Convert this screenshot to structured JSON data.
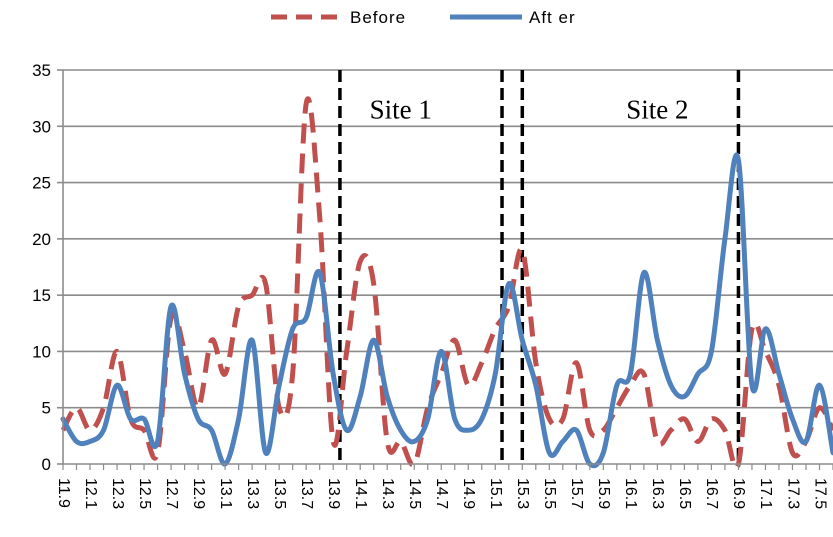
{
  "chart_data": {
    "type": "line",
    "title": "",
    "xlabel": "",
    "ylabel": "",
    "ylim": [
      0,
      35
    ],
    "yticks": [
      0,
      5,
      10,
      15,
      20,
      25,
      30,
      35
    ],
    "grid": "horizontal",
    "legend": "top",
    "x": [
      11.9,
      12.0,
      12.1,
      12.2,
      12.3,
      12.4,
      12.5,
      12.6,
      12.7,
      12.8,
      12.9,
      13.0,
      13.1,
      13.2,
      13.3,
      13.4,
      13.5,
      13.6,
      13.7,
      13.8,
      13.9,
      14.0,
      14.1,
      14.2,
      14.3,
      14.4,
      14.5,
      14.6,
      14.7,
      14.8,
      14.9,
      15.0,
      15.1,
      15.2,
      15.3,
      15.4,
      15.5,
      15.6,
      15.7,
      15.8,
      15.9,
      16.0,
      16.1,
      16.2,
      16.3,
      16.4,
      16.5,
      16.6,
      16.7,
      16.8,
      16.9,
      17.0,
      17.1,
      17.2,
      17.3,
      17.4,
      17.5,
      17.6
    ],
    "x_tick_labels": [
      "11.9",
      "12.1",
      "12.3",
      "12.5",
      "12.7",
      "12.9",
      "13.1",
      "13.3",
      "13.5",
      "13.7",
      "13.9",
      "14.1",
      "14.3",
      "14.5",
      "14.7",
      "14.9",
      "15.1",
      "15.3",
      "15.5",
      "15.7",
      "15.9",
      "16.1",
      "16.3",
      "16.5",
      "16.7",
      "16.9",
      "17.1",
      "17.3",
      "17.5"
    ],
    "series": [
      {
        "name": "Before",
        "color": "#C0504D",
        "style": "dashed",
        "values": [
          3,
          5,
          3,
          5,
          10,
          4,
          3,
          1,
          13,
          10,
          5,
          11,
          8,
          14,
          15,
          16,
          5,
          8,
          32,
          22,
          2,
          10,
          18,
          16,
          2,
          2,
          0,
          5,
          8,
          11,
          7,
          9,
          12,
          14,
          19,
          9,
          4,
          4,
          9,
          3,
          3,
          5,
          7,
          8,
          2,
          3,
          4,
          2,
          4,
          3,
          0,
          12,
          10,
          7,
          1,
          2,
          5,
          3
        ]
      },
      {
        "name": "Aft  er",
        "color": "#4F81BD",
        "style": "solid",
        "values": [
          4,
          2,
          2,
          3,
          7,
          4,
          4,
          2,
          14,
          8,
          4,
          3,
          0,
          4,
          11,
          1,
          7,
          12,
          13,
          17,
          8,
          3,
          6,
          11,
          6,
          3,
          2,
          4,
          10,
          4,
          3,
          4,
          8,
          16,
          11,
          7,
          1,
          2,
          3,
          0,
          1,
          7,
          8,
          17,
          11,
          7,
          6,
          8,
          10,
          20,
          27,
          7,
          12,
          8,
          4,
          2,
          7,
          1
        ]
      }
    ],
    "annotations": [
      {
        "text": "Site 1",
        "x": 14.4,
        "y": 31.5
      },
      {
        "text": "Site 2",
        "x": 16.3,
        "y": 31.5
      }
    ],
    "vertical_lines_x": [
      13.95,
      15.15,
      15.3,
      16.9
    ]
  }
}
